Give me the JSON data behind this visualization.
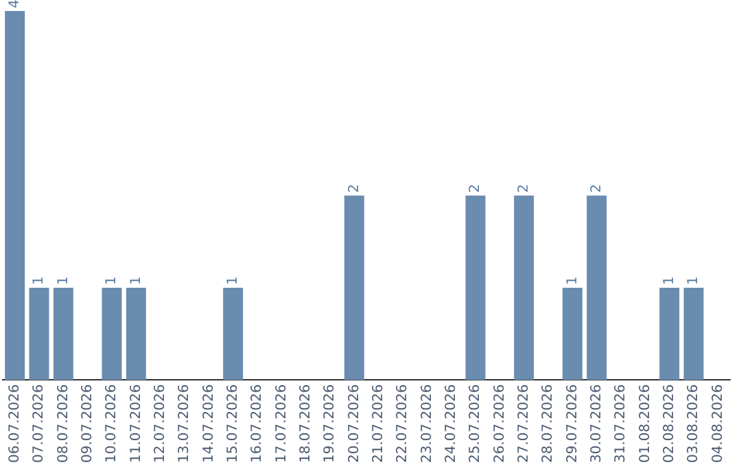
{
  "chart_data": {
    "type": "bar",
    "categories": [
      "06.07.2026",
      "07.07.2026",
      "08.07.2026",
      "09.07.2026",
      "10.07.2026",
      "11.07.2026",
      "12.07.2026",
      "13.07.2026",
      "14.07.2026",
      "15.07.2026",
      "16.07.2026",
      "17.07.2026",
      "18.07.2026",
      "19.07.2026",
      "20.07.2026",
      "21.07.2026",
      "22.07.2026",
      "23.07.2026",
      "24.07.2026",
      "25.07.2026",
      "26.07.2026",
      "27.07.2026",
      "28.07.2026",
      "29.07.2026",
      "30.07.2026",
      "31.07.2026",
      "01.08.2026",
      "02.08.2026",
      "03.08.2026",
      "04.08.2026"
    ],
    "values": [
      4,
      1,
      1,
      0,
      1,
      1,
      0,
      0,
      0,
      1,
      0,
      0,
      0,
      0,
      2,
      0,
      0,
      0,
      0,
      2,
      0,
      2,
      0,
      1,
      2,
      0,
      0,
      1,
      1,
      0
    ],
    "value_labels": [
      "4",
      "1",
      "1",
      null,
      "1",
      "1",
      null,
      null,
      null,
      "1",
      null,
      null,
      null,
      null,
      "2",
      null,
      null,
      null,
      null,
      "2",
      null,
      "2",
      null,
      "1",
      "2",
      null,
      null,
      "1",
      "1",
      null
    ],
    "color": "#6a8caf",
    "grid": false,
    "legend": false
  }
}
